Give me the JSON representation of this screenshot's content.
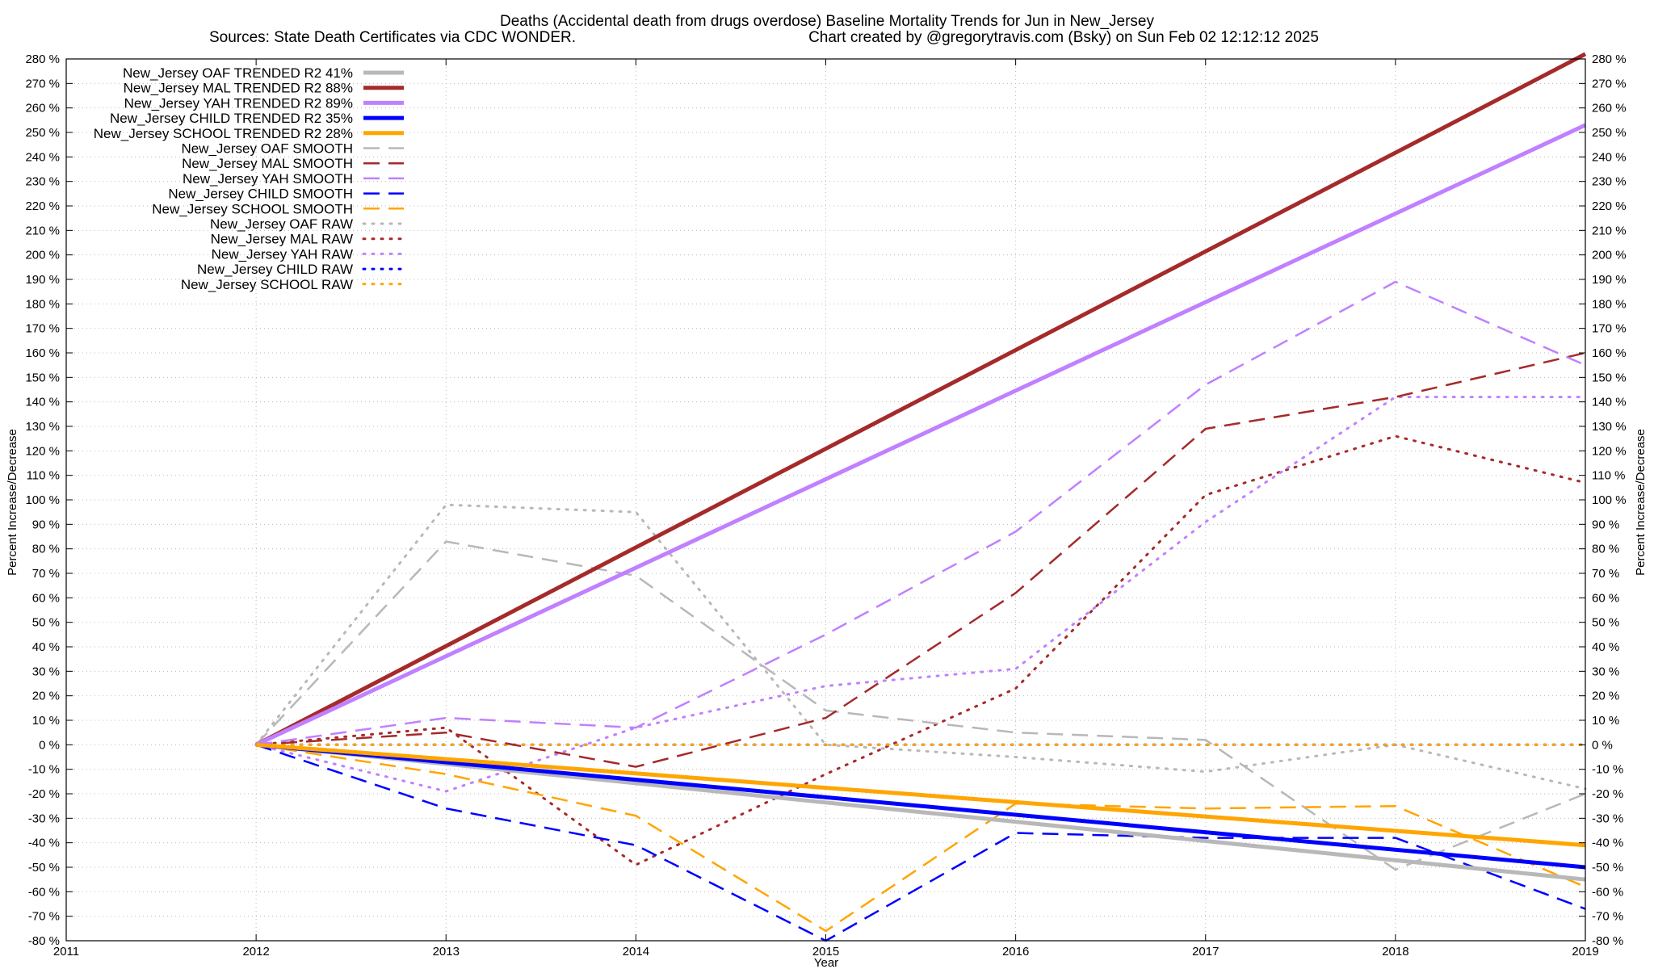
{
  "chart_data": {
    "type": "line",
    "title": "Deaths (Accidental death from drugs overdose)  Baseline Mortality Trends for Jun in New_Jersey",
    "subtitle_left": "Sources: State Death Certificates via CDC WONDER.",
    "subtitle_right": "Chart created by @gregorytravis.com (Bsky) on Sun Feb 02 12:12:12 2025",
    "xlabel": "Year",
    "ylabel": "Percent Increase/Decrease",
    "xlim": [
      2011,
      2019
    ],
    "ylim": [
      -80,
      280
    ],
    "xticks": [
      "2011",
      "2012",
      "2013",
      "2014",
      "2015",
      "2016",
      "2017",
      "2018",
      "2019"
    ],
    "yticks": [
      "280 %",
      "270 %",
      "260 %",
      "250 %",
      "240 %",
      "230 %",
      "220 %",
      "210 %",
      "200 %",
      "190 %",
      "180 %",
      "170 %",
      "160 %",
      "150 %",
      "140 %",
      "130 %",
      "120 %",
      "110 %",
      "100 %",
      "90 %",
      "80 %",
      "70 %",
      "60 %",
      "50 %",
      "40 %",
      "30 %",
      "20 %",
      "10 %",
      "0 %",
      "-10 %",
      "-20 %",
      "-30 %",
      "-40 %",
      "-50 %",
      "-60 %",
      "-70 %",
      "-80 %"
    ],
    "grid": true,
    "legend_position": "top-left",
    "series": [
      {
        "name": "New_Jersey OAF TRENDED R2  41%",
        "style": "solid",
        "color": "#b8b8b8",
        "x": [
          2012,
          2019
        ],
        "y": [
          0,
          -55
        ]
      },
      {
        "name": "New_Jersey MAL TRENDED R2  88%",
        "style": "solid",
        "color": "#a52a2a",
        "x": [
          2012,
          2019
        ],
        "y": [
          0,
          282
        ]
      },
      {
        "name": "New_Jersey YAH TRENDED R2  89%",
        "style": "solid",
        "color": "#c080ff",
        "x": [
          2012,
          2019
        ],
        "y": [
          0,
          253
        ]
      },
      {
        "name": "New_Jersey CHILD TRENDED R2  35%",
        "style": "solid",
        "color": "#0000ff",
        "x": [
          2012,
          2019
        ],
        "y": [
          0,
          -50
        ]
      },
      {
        "name": "New_Jersey SCHOOL TRENDED R2  28%",
        "style": "solid",
        "color": "#ffa500",
        "x": [
          2012,
          2019
        ],
        "y": [
          0,
          -41
        ]
      },
      {
        "name": "New_Jersey OAF SMOOTH",
        "style": "dashed",
        "color": "#b8b8b8",
        "x": [
          2012,
          2013,
          2014,
          2015,
          2016,
          2017,
          2018,
          2019
        ],
        "y": [
          0,
          83,
          69,
          14,
          5,
          2,
          -51,
          -20
        ]
      },
      {
        "name": "New_Jersey MAL SMOOTH",
        "style": "dashed",
        "color": "#a52a2a",
        "x": [
          2012,
          2013,
          2014,
          2015,
          2016,
          2017,
          2018,
          2019
        ],
        "y": [
          0,
          5,
          -9,
          11,
          62,
          129,
          142,
          160
        ]
      },
      {
        "name": "New_Jersey YAH SMOOTH",
        "style": "dashed",
        "color": "#c080ff",
        "x": [
          2012,
          2013,
          2014,
          2015,
          2016,
          2017,
          2018,
          2019
        ],
        "y": [
          0,
          11,
          7,
          45,
          87,
          147,
          189,
          155
        ]
      },
      {
        "name": "New_Jersey CHILD SMOOTH",
        "style": "dashed",
        "color": "#0000ff",
        "x": [
          2012,
          2013,
          2014,
          2015,
          2016,
          2017,
          2018,
          2019
        ],
        "y": [
          0,
          -26,
          -41,
          -80,
          -36,
          -38,
          -38,
          -67
        ]
      },
      {
        "name": "New_Jersey SCHOOL SMOOTH",
        "style": "dashed",
        "color": "#ffa500",
        "x": [
          2012,
          2013,
          2014,
          2015,
          2016,
          2017,
          2018,
          2019
        ],
        "y": [
          0,
          -12,
          -29,
          -76,
          -24,
          -26,
          -25,
          -58
        ]
      },
      {
        "name": "New_Jersey OAF RAW",
        "style": "dotted",
        "color": "#b8b8b8",
        "x": [
          2012,
          2013,
          2014,
          2015,
          2016,
          2017,
          2018,
          2019
        ],
        "y": [
          0,
          98,
          95,
          0,
          -5,
          -11,
          0,
          -18
        ]
      },
      {
        "name": "New_Jersey MAL RAW",
        "style": "dotted",
        "color": "#a52a2a",
        "x": [
          2012,
          2013,
          2014,
          2015,
          2016,
          2017,
          2018,
          2019
        ],
        "y": [
          0,
          7,
          -49,
          -12,
          23,
          102,
          126,
          107
        ]
      },
      {
        "name": "New_Jersey YAH RAW",
        "style": "dotted",
        "color": "#c080ff",
        "x": [
          2012,
          2013,
          2014,
          2015,
          2016,
          2017,
          2018,
          2019
        ],
        "y": [
          0,
          -19,
          7,
          24,
          31,
          91,
          142,
          142
        ]
      },
      {
        "name": "New_Jersey CHILD RAW",
        "style": "dotted",
        "color": "#0000ff",
        "x": [
          2012,
          2013,
          2014,
          2015,
          2016,
          2017,
          2018,
          2019
        ],
        "y": [
          0,
          0,
          0,
          0,
          0,
          0,
          0,
          0
        ]
      },
      {
        "name": "New_Jersey SCHOOL RAW",
        "style": "dotted",
        "color": "#ffa500",
        "x": [
          2012,
          2013,
          2014,
          2015,
          2016,
          2017,
          2018,
          2019
        ],
        "y": [
          0,
          0,
          0,
          0,
          0,
          0,
          0,
          0
        ]
      }
    ]
  }
}
